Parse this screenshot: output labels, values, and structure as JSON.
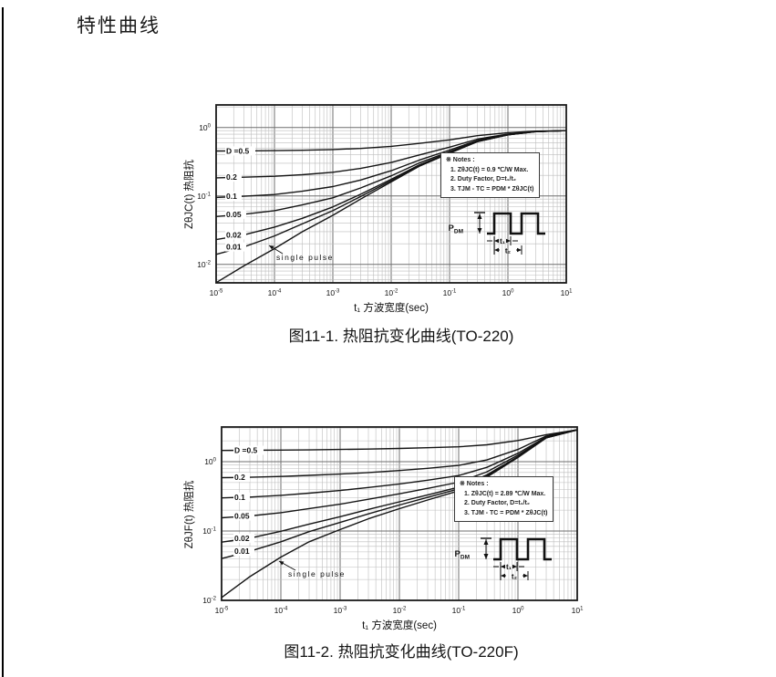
{
  "page": {
    "title": "特性曲线"
  },
  "chart_data": [
    {
      "type": "line",
      "caption": "图11-1. 热阻抗变化曲线(TO-220)",
      "xlabel": "t₁ 方波宽度(sec)",
      "ylabel": "ZθJC(t) 热阻抗",
      "xscale": "log",
      "yscale": "log",
      "grid": true,
      "xlim_exp": [
        -5,
        1
      ],
      "ylim_exp": [
        -2.27,
        0.33
      ],
      "x_tick_exponents": [
        -5,
        -4,
        -3,
        -2,
        -1,
        0,
        1
      ],
      "y_tick_exponents": [
        0,
        -1,
        -2
      ],
      "x": [
        1e-05,
        3e-05,
        0.0001,
        0.0003,
        0.001,
        0.003,
        0.01,
        0.03,
        0.1,
        0.3,
        1,
        3,
        10
      ],
      "series": [
        {
          "name": "D =0.5",
          "values": [
            0.453,
            0.455,
            0.459,
            0.465,
            0.476,
            0.495,
            0.53,
            0.585,
            0.66,
            0.76,
            0.84,
            0.885,
            0.9
          ]
        },
        {
          "name": "0.2",
          "values": [
            0.184,
            0.188,
            0.194,
            0.204,
            0.222,
            0.252,
            0.308,
            0.396,
            0.516,
            0.676,
            0.804,
            0.876,
            0.9
          ]
        },
        {
          "name": "0.1",
          "values": [
            0.095,
            0.099,
            0.105,
            0.117,
            0.137,
            0.171,
            0.234,
            0.333,
            0.468,
            0.648,
            0.792,
            0.873,
            0.9
          ]
        },
        {
          "name": "0.05",
          "values": [
            0.05,
            0.054,
            0.061,
            0.074,
            0.094,
            0.131,
            0.197,
            0.302,
            0.444,
            0.634,
            0.786,
            0.872,
            0.9
          ]
        },
        {
          "name": "0.02",
          "values": [
            0.023,
            0.027,
            0.035,
            0.047,
            0.069,
            0.106,
            0.175,
            0.283,
            0.43,
            0.626,
            0.782,
            0.871,
            0.9
          ]
        },
        {
          "name": "0.01",
          "values": [
            0.014,
            0.018,
            0.026,
            0.039,
            0.061,
            0.098,
            0.167,
            0.276,
            0.425,
            0.623,
            0.781,
            0.87,
            0.9
          ]
        },
        {
          "name": "single pulse",
          "values": [
            0.0054,
            0.0095,
            0.017,
            0.03,
            0.052,
            0.09,
            0.16,
            0.27,
            0.42,
            0.62,
            0.78,
            0.87,
            0.9
          ]
        }
      ],
      "notes": [
        "※ Notes :",
        "1. ZθJC(t) = 0.9 ℃/W Max.",
        "2. Duty Factor, D=t₁/t₂",
        "3. TJM - TC = PDM * ZθJC(t)"
      ],
      "waveform_labels": {
        "pdm_main": "P",
        "pdm_sub": "DM",
        "t1": "t₁",
        "t2": "t₂"
      }
    },
    {
      "type": "line",
      "caption": "图11-2. 热阻抗变化曲线(TO-220F)",
      "xlabel": "t₁ 方波宽度(sec)",
      "ylabel": "ZθJF(t) 热阻抗",
      "xscale": "log",
      "yscale": "log",
      "grid": true,
      "xlim_exp": [
        -5,
        1
      ],
      "ylim_exp": [
        -2.0,
        0.5
      ],
      "x_tick_exponents": [
        -5,
        -4,
        -3,
        -2,
        -1,
        0,
        1
      ],
      "y_tick_exponents": [
        0,
        -1,
        -2
      ],
      "x": [
        1e-05,
        3e-05,
        0.0001,
        0.0003,
        0.001,
        0.003,
        0.01,
        0.03,
        0.1,
        0.3,
        1,
        3,
        10
      ],
      "series": [
        {
          "name": "D =0.5",
          "values": [
            1.45,
            1.46,
            1.47,
            1.48,
            1.5,
            1.52,
            1.55,
            1.59,
            1.64,
            1.75,
            2.02,
            2.45,
            2.88
          ]
        },
        {
          "name": "0.2",
          "values": [
            0.587,
            0.596,
            0.612,
            0.634,
            0.662,
            0.698,
            0.746,
            0.802,
            0.882,
            1.06,
            1.5,
            2.34,
            2.88
          ]
        },
        {
          "name": "0.1",
          "values": [
            0.3,
            0.309,
            0.327,
            0.352,
            0.384,
            0.424,
            0.478,
            0.541,
            0.631,
            0.829,
            1.32,
            2.27,
            2.88
          ]
        },
        {
          "name": "0.05",
          "values": [
            0.155,
            0.165,
            0.184,
            0.211,
            0.244,
            0.287,
            0.344,
            0.411,
            0.506,
            0.715,
            1.24,
            2.23,
            2.88
          ]
        },
        {
          "name": "0.02",
          "values": [
            0.069,
            0.079,
            0.099,
            0.126,
            0.161,
            0.205,
            0.264,
            0.332,
            0.43,
            0.646,
            1.18,
            2.21,
            2.87
          ]
        },
        {
          "name": "0.01",
          "values": [
            0.04,
            0.051,
            0.07,
            0.098,
            0.133,
            0.177,
            0.237,
            0.306,
            0.405,
            0.623,
            1.17,
            2.21,
            2.87
          ]
        },
        {
          "name": "single pulse",
          "values": [
            0.011,
            0.022,
            0.042,
            0.07,
            0.105,
            0.15,
            0.21,
            0.28,
            0.38,
            0.6,
            1.15,
            2.2,
            2.87
          ]
        }
      ],
      "notes": [
        "※ Notes :",
        "1. ZθJC(t) = 2.89 ℃/W Max.",
        "2. Duty Factor, D=t₁/t₂",
        "3. TJM - TC = PDM * ZθJC(t)"
      ],
      "waveform_labels": {
        "pdm_main": "P",
        "pdm_sub": "DM",
        "t1": "t₁",
        "t2": "t₂"
      }
    }
  ]
}
